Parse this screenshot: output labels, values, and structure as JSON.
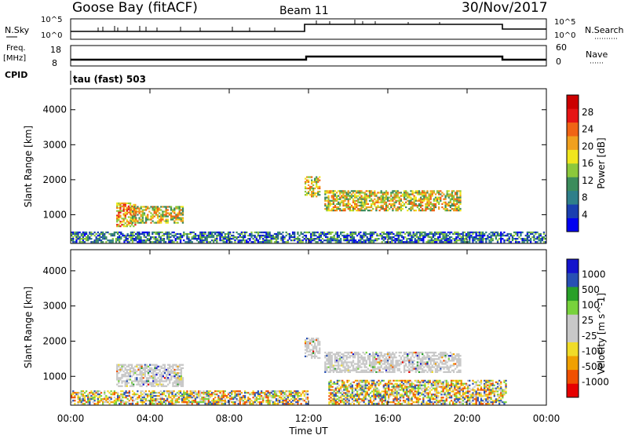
{
  "header": {
    "station": "Goose Bay (fitACF)",
    "beam": "Beam 11",
    "date": "30/Nov/2017"
  },
  "top_panels": {
    "nsky_label": "N.Sky",
    "nsearch_label": "N.Search",
    "left_ticks": [
      "10^5",
      "10^0"
    ],
    "right_ticks": [
      "10^5",
      "10^0"
    ],
    "freq_label": "Freq.",
    "freq_unit": "[MHz]",
    "freq_ticks": [
      "18",
      "8"
    ],
    "nave_label": "Nave",
    "nave_ticks": [
      "60",
      "0"
    ],
    "cpid_label": "CPID",
    "cpid_value": "tau (fast) 503"
  },
  "colors": {
    "power_scale": [
      "#0000f0",
      "#1a3fb0",
      "#2f7f8a",
      "#3c8c5c",
      "#8cc83c",
      "#f0e61e",
      "#f0a01e",
      "#f06414",
      "#e61414",
      "#cc0000"
    ],
    "velocity_scale": [
      "#1414cc",
      "#2850b4",
      "#28a028",
      "#78d23c",
      "#c8c8c8",
      "#c8c8c8",
      "#f0dc28",
      "#f0a000",
      "#f05000",
      "#e60000"
    ]
  },
  "chart_data": [
    {
      "type": "heatmap",
      "title": "",
      "xlabel": "Time UT",
      "ylabel": "Slant Range [km]",
      "x_ticks": [
        "00:00",
        "04:00",
        "08:00",
        "12:00",
        "16:00",
        "20:00",
        "00:00"
      ],
      "y_ticks": [
        "1000",
        "2000",
        "3000",
        "4000"
      ],
      "ylim": [
        180,
        4600
      ],
      "colorbar": {
        "label": "Power [dB]",
        "ticks": [
          "4",
          "8",
          "12",
          "16",
          "20",
          "24",
          "28"
        ],
        "range": [
          0,
          30
        ]
      },
      "features": [
        {
          "name": "ground scatter",
          "t_start": 0.0,
          "t_end": 24.0,
          "range_km": [
            200,
            520
          ],
          "level": 8
        },
        {
          "name": "echo band A",
          "t_start": 2.3,
          "t_end": 3.3,
          "range_km": [
            650,
            1350
          ],
          "level": 20
        },
        {
          "name": "echo band B",
          "t_start": 3.0,
          "t_end": 5.7,
          "range_km": [
            750,
            1250
          ],
          "level": 18
        },
        {
          "name": "echo band C",
          "t_start": 11.8,
          "t_end": 12.6,
          "range_km": [
            1500,
            2100
          ],
          "level": 18
        },
        {
          "name": "echo band D",
          "t_start": 12.8,
          "t_end": 19.7,
          "range_km": [
            1100,
            1700
          ],
          "level": 18
        }
      ]
    },
    {
      "type": "heatmap",
      "title": "",
      "xlabel": "Time UT",
      "ylabel": "Slant Range [km]",
      "x_ticks": [
        "00:00",
        "04:00",
        "08:00",
        "12:00",
        "16:00",
        "20:00",
        "00:00"
      ],
      "y_ticks": [
        "1000",
        "2000",
        "3000",
        "4000"
      ],
      "ylim": [
        180,
        4600
      ],
      "colorbar": {
        "label": "Velocity [m s^-1]",
        "ticks": [
          "1000",
          "500",
          "100",
          "25",
          "-25",
          "-100",
          "-500",
          "-1000"
        ],
        "range": [
          -1000,
          1000
        ]
      },
      "features": [
        {
          "name": "ground scatter",
          "t_start": 0.0,
          "t_end": 12.0,
          "range_km": [
            200,
            600
          ],
          "level": -100
        },
        {
          "name": "echo band A",
          "t_start": 2.3,
          "t_end": 5.7,
          "range_km": [
            700,
            1350
          ],
          "level": 0
        },
        {
          "name": "echo band C",
          "t_start": 11.8,
          "t_end": 12.6,
          "range_km": [
            1500,
            2100
          ],
          "level": 0
        },
        {
          "name": "echo band D",
          "t_start": 12.8,
          "t_end": 19.7,
          "range_km": [
            1100,
            1700
          ],
          "level": 0
        },
        {
          "name": "mixed late echoes",
          "t_start": 13.0,
          "t_end": 22.0,
          "range_km": [
            200,
            900
          ],
          "level": -100
        }
      ]
    }
  ]
}
